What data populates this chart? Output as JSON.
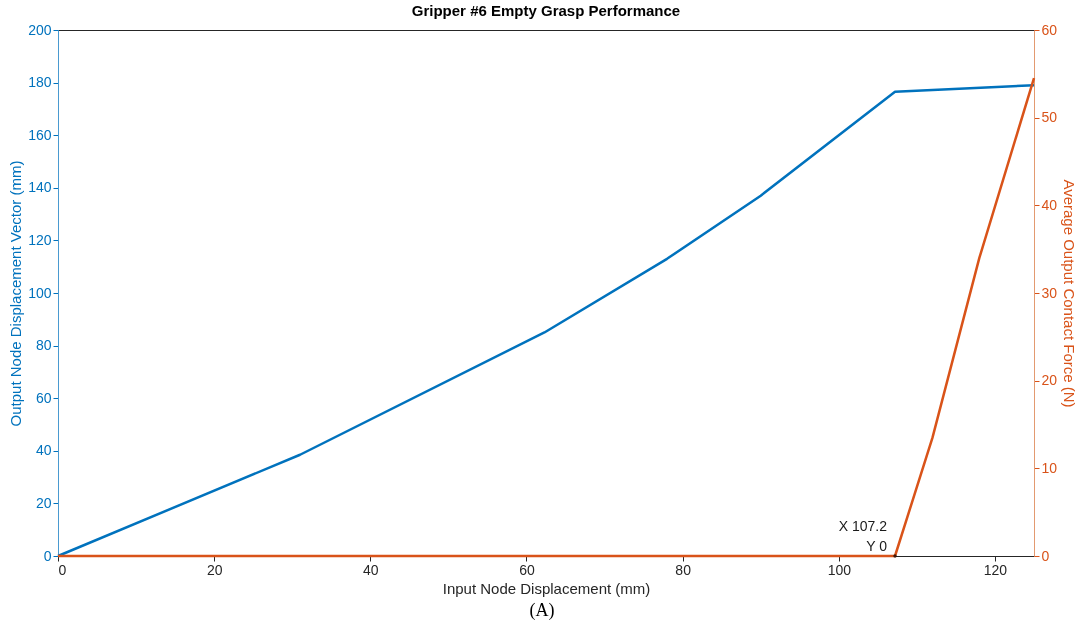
{
  "chart_data": {
    "type": "line",
    "title": "Gripper #6 Empty Grasp Performance",
    "xlabel": "Input Node Displacement (mm)",
    "ylabel": "Output Node Displacement Vector (mm)",
    "y2label": "Average Output Contact Force (N)",
    "xlim": [
      0,
      125
    ],
    "xticks": [
      0,
      20,
      40,
      60,
      80,
      100,
      120
    ],
    "ylim": [
      0,
      200
    ],
    "yticks": [
      0,
      20,
      40,
      60,
      80,
      100,
      120,
      140,
      160,
      180,
      200
    ],
    "y2lim": [
      0,
      60
    ],
    "y2ticks": [
      0,
      10,
      20,
      30,
      40,
      50,
      60
    ],
    "grid": false,
    "marker": "none",
    "line_style": "solid",
    "series": [
      {
        "color": "#0072bd",
        "x": [
          0,
          31,
          62.3,
          78,
          90,
          107.2,
          125
        ],
        "values": [
          0,
          38.5,
          85,
          113,
          137,
          176.5,
          179
        ]
      },
      {
        "color": "#d95319",
        "axis": "y2",
        "x": [
          0,
          107.2,
          112,
          118,
          125
        ],
        "values": [
          0,
          0,
          13.5,
          34,
          54.5
        ]
      }
    ],
    "annotations": [
      {
        "text": "X 107.2\nY 0",
        "x": 107.2,
        "y": 0
      },
      "(A)"
    ]
  }
}
